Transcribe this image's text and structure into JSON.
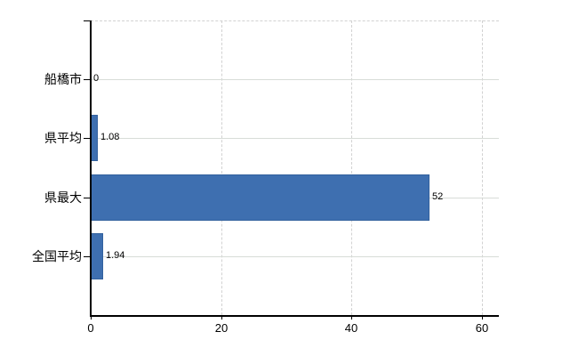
{
  "chart_data": {
    "type": "bar",
    "orientation": "horizontal",
    "title": "",
    "categories": [
      "船橋市",
      "県平均",
      "県最大",
      "全国平均"
    ],
    "values": [
      0,
      1.08,
      52,
      1.94
    ],
    "value_labels": [
      "0",
      "1.08",
      "52",
      "1.94"
    ],
    "x_axis": {
      "ticks": [
        0,
        20,
        40,
        60
      ],
      "tick_labels": [
        "0",
        "20",
        "40",
        "60"
      ],
      "range": [
        0,
        62.7
      ]
    },
    "legend": null,
    "grid": {
      "vertical_gridlines": true,
      "horizontal_category_lines": true,
      "dashed_top_border": true
    },
    "colors": {
      "bar": "#3e6fb0",
      "bar_border": "#33619e",
      "axis": "#000000",
      "gridline": "#d8dcd8",
      "dashed_gridline": "#d2d2d2",
      "text": "#000000",
      "background": "#ffffff"
    }
  }
}
